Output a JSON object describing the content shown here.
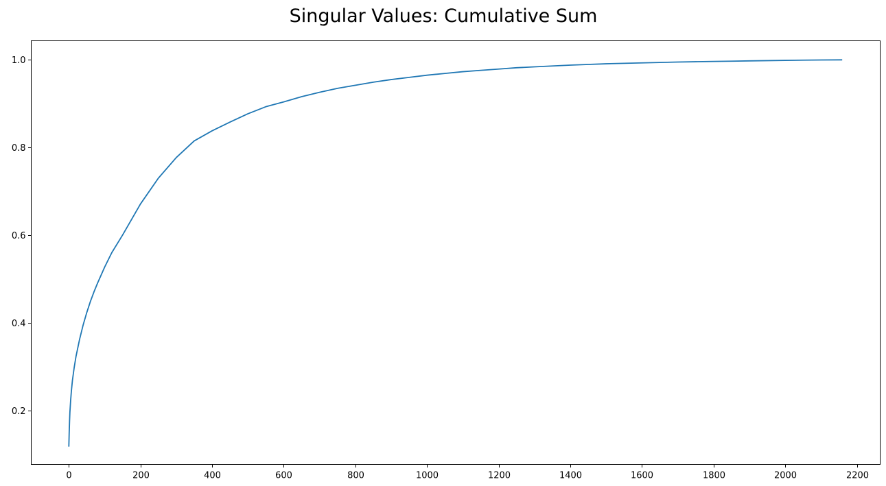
{
  "chart_data": {
    "type": "line",
    "title": "Singular Values: Cumulative Sum",
    "xlabel": "",
    "ylabel": "",
    "xlim": [
      -105,
      2265
    ],
    "ylim": [
      0.0765,
      1.0435
    ],
    "grid": false,
    "legend": "none",
    "x_ticks": [
      0,
      200,
      400,
      600,
      800,
      1000,
      1200,
      1400,
      1600,
      1800,
      2000,
      2200
    ],
    "x_tick_labels": [
      "0",
      "200",
      "400",
      "600",
      "800",
      "1000",
      "1200",
      "1400",
      "1600",
      "1800",
      "2000",
      "2200"
    ],
    "y_ticks": [
      0.2,
      0.4,
      0.6,
      0.8,
      1.0
    ],
    "y_tick_labels": [
      "0.2",
      "0.4",
      "0.6",
      "0.8",
      "1.0"
    ],
    "series": [
      {
        "color": "#1f77b4",
        "x": [
          0,
          1,
          2,
          3,
          5,
          7,
          10,
          15,
          20,
          30,
          40,
          50,
          60,
          70,
          80,
          100,
          120,
          150,
          200,
          250,
          300,
          350,
          400,
          450,
          500,
          550,
          600,
          650,
          700,
          750,
          800,
          850,
          900,
          950,
          1000,
          1050,
          1100,
          1150,
          1200,
          1250,
          1300,
          1350,
          1400,
          1450,
          1500,
          1550,
          1600,
          1650,
          1700,
          1750,
          1800,
          1850,
          1900,
          1950,
          2000,
          2050,
          2100,
          2159
        ],
        "values": [
          0.117,
          0.15,
          0.175,
          0.196,
          0.222,
          0.243,
          0.268,
          0.298,
          0.323,
          0.362,
          0.395,
          0.423,
          0.448,
          0.47,
          0.49,
          0.527,
          0.56,
          0.6,
          0.671,
          0.73,
          0.777,
          0.815,
          0.838,
          0.858,
          0.877,
          0.893,
          0.904,
          0.916,
          0.926,
          0.935,
          0.942,
          0.949,
          0.955,
          0.96,
          0.965,
          0.969,
          0.973,
          0.976,
          0.979,
          0.982,
          0.984,
          0.986,
          0.988,
          0.9895,
          0.991,
          0.992,
          0.993,
          0.994,
          0.995,
          0.9957,
          0.9964,
          0.997,
          0.9976,
          0.9982,
          0.9988,
          0.9993,
          0.9997,
          1.0
        ]
      }
    ]
  }
}
